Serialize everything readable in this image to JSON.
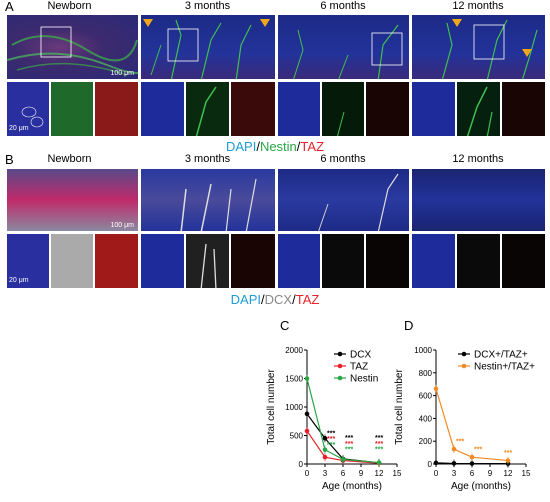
{
  "panelA": {
    "letter": "A",
    "columns": [
      "Newborn",
      "3 months",
      "6 months",
      "12 months"
    ],
    "scale_top": "100 μm",
    "scale_bottom": "20 μm",
    "legend": {
      "dapi": "DAPI",
      "sep1": "/",
      "marker": "Nestin",
      "sep2": "/",
      "taz": "TAZ"
    }
  },
  "panelB": {
    "letter": "B",
    "columns": [
      "Newborn",
      "3 months",
      "6 months",
      "12 months"
    ],
    "scale_top": "100 μm",
    "scale_bottom": "20 μm",
    "legend": {
      "dapi": "DAPI",
      "sep1": "/",
      "marker": "DCX",
      "sep2": "/",
      "taz": "TAZ"
    }
  },
  "colors": {
    "dapi": "#1e9bd7",
    "nestin": "#28a745",
    "dcx": "#888888",
    "taz": "#e8212a",
    "orange": "#f08a24",
    "black": "#000000"
  },
  "chart_data": [
    {
      "panel": "C",
      "type": "line",
      "xlabel": "Age (months)",
      "ylabel": "Total cell number",
      "xticks": [
        0,
        3,
        6,
        9,
        12,
        15
      ],
      "yticks": [
        0,
        500,
        1000,
        1500,
        2000
      ],
      "xlim": [
        0,
        15
      ],
      "ylim": [
        0,
        2000
      ],
      "legend_position": "top-right",
      "series": [
        {
          "name": "DCX",
          "color": "#000000",
          "x": [
            0,
            3,
            6,
            12
          ],
          "values": [
            880,
            450,
            90,
            20
          ]
        },
        {
          "name": "TAZ",
          "color": "#e8212a",
          "x": [
            0,
            3,
            6,
            12
          ],
          "values": [
            580,
            120,
            60,
            15
          ]
        },
        {
          "name": "Nestin",
          "color": "#28a745",
          "x": [
            0,
            3,
            6,
            12
          ],
          "values": [
            1500,
            250,
            80,
            25
          ]
        }
      ],
      "significance": "***"
    },
    {
      "panel": "D",
      "type": "line",
      "xlabel": "Age (months)",
      "ylabel": "Total cell number",
      "xticks": [
        0,
        3,
        6,
        9,
        12,
        15
      ],
      "yticks": [
        0,
        200,
        400,
        600,
        800,
        1000
      ],
      "xlim": [
        0,
        15
      ],
      "ylim": [
        0,
        1000
      ],
      "legend_position": "top-right",
      "series": [
        {
          "name": "DCX+/TAZ+",
          "color": "#000000",
          "x": [
            0,
            3,
            6,
            12
          ],
          "values": [
            10,
            5,
            4,
            3
          ]
        },
        {
          "name": "Nestin+/TAZ+",
          "color": "#f08a24",
          "x": [
            0,
            3,
            6,
            12
          ],
          "values": [
            660,
            130,
            60,
            30
          ]
        }
      ],
      "significance": "***"
    }
  ]
}
